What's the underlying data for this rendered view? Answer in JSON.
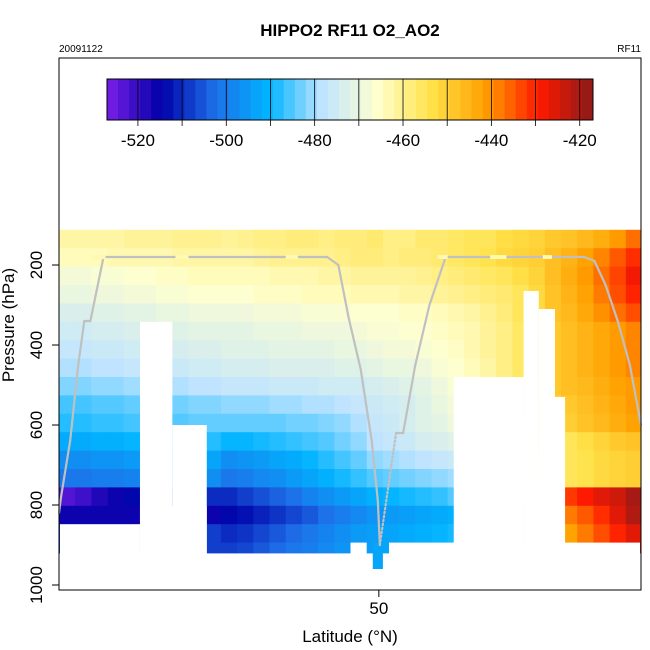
{
  "chart_data": {
    "type": "heatmap",
    "title": "HIPPO2 RF11 O2_AO2",
    "date_label": "20091122",
    "flight_label": "RF11",
    "xlabel": "Latitude (°N)",
    "ylabel": "Pressure (hPa)",
    "xlim": [
      18.4,
      75.9
    ],
    "ylim": [
      1000,
      0
    ],
    "x_ticks": [
      50
    ],
    "y_ticks": [
      200,
      400,
      600,
      800,
      1000
    ],
    "colorbar": {
      "range": [
        -527,
        -417
      ],
      "ticks": [
        -520,
        -500,
        -480,
        -460,
        -440,
        -420
      ],
      "colors": [
        "#7a1fe8",
        "#0000a8",
        "#1e6fe8",
        "#00b4ff",
        "#bfe4ff",
        "#ffffd0",
        "#ffe24a",
        "#ffa000",
        "#ff1a00",
        "#8b1a1a"
      ]
    },
    "grid_x_edges": [
      18.4,
      20.0,
      21.6,
      23.2,
      24.8,
      26.4,
      28.0,
      29.6,
      31.2,
      32.8,
      34.4,
      36.0,
      37.6,
      39.2,
      40.8,
      42.4,
      44.0,
      45.6,
      47.2,
      48.8,
      50.4,
      52.0,
      53.6,
      55.2,
      56.8,
      58.4,
      60.0,
      61.6,
      63.2,
      64.8,
      66.4,
      68.0,
      69.6,
      71.2,
      72.8,
      74.4,
      76.0
    ],
    "grid_y_edges": [
      112,
      158,
      204,
      250,
      296,
      342,
      388,
      434,
      480,
      526,
      572,
      618,
      664,
      710,
      756,
      802,
      848,
      894,
      920
    ],
    "cells": [
      [
        -462,
        -462,
        -462,
        -462,
        -461,
        -461,
        -461,
        -460,
        -460,
        -460,
        -461,
        -460,
        -459,
        -459,
        -458,
        -458,
        -459,
        -458,
        -458,
        -457,
        -459,
        -459,
        -457,
        -457,
        -456,
        -455,
        -455,
        -453,
        -452,
        -451,
        -449,
        -448,
        -446,
        -444,
        -441,
        -437
      ],
      [
        -464,
        -464,
        -464,
        -463,
        -463,
        -463,
        -463,
        -462,
        -462,
        -462,
        -462,
        -462,
        -461,
        -460,
        -460,
        -460,
        -460,
        -459,
        -458,
        -458,
        -459,
        -458,
        -458,
        -457,
        -456,
        -455,
        -454,
        -452,
        -451,
        -450,
        -447,
        -445,
        -442,
        -439,
        -435,
        -431
      ],
      [
        -468,
        -468,
        -467,
        -467,
        -466,
        -466,
        -465,
        -465,
        -464,
        -464,
        -464,
        -464,
        -464,
        -463,
        -463,
        -463,
        -462,
        -462,
        -461,
        -461,
        -461,
        -461,
        -460,
        -459,
        -458,
        -457,
        -456,
        -455,
        -453,
        -451,
        -447,
        -444,
        -441,
        -437,
        -433,
        -428
      ],
      [
        -470,
        -470,
        -469,
        -469,
        -468,
        -468,
        -467,
        -467,
        -466,
        -466,
        -466,
        -466,
        -465,
        -465,
        -465,
        -464,
        -464,
        -464,
        -463,
        -463,
        -463,
        -462,
        -462,
        -461,
        -460,
        -459,
        -458,
        -457,
        -455,
        -452,
        -448,
        -445,
        -442,
        -438,
        -434,
        -430
      ],
      [
        -473,
        -473,
        -472,
        -472,
        -471,
        -471,
        -470,
        -470,
        -469,
        -469,
        -469,
        -469,
        -468,
        -468,
        -468,
        -467,
        -467,
        -467,
        -466,
        -466,
        -466,
        -465,
        -465,
        -464,
        -463,
        -462,
        -460,
        -458,
        -455,
        -452,
        -448,
        -446,
        -443,
        -440,
        -437,
        -434
      ],
      [
        -475,
        -475,
        -474,
        -474,
        -473,
        -473,
        -472,
        -472,
        -471,
        -471,
        -471,
        -471,
        -470,
        -470,
        -470,
        -469,
        -469,
        -469,
        -468,
        -467,
        -467,
        -466,
        -466,
        -465,
        -464,
        -463,
        -461,
        -459,
        -456,
        -453,
        -449,
        -447,
        -445,
        -443,
        -441,
        -439
      ],
      [
        -477,
        -477,
        -476,
        -476,
        -475,
        -475,
        -474,
        -474,
        -473,
        -473,
        -472,
        -472,
        -472,
        -471,
        -471,
        -471,
        -471,
        -470,
        -470,
        -469,
        -468,
        -468,
        -467,
        -466,
        -465,
        -463,
        -461,
        -459,
        -456,
        -452,
        -449,
        -447,
        -445,
        -443,
        -441,
        -439
      ],
      [
        -479,
        -479,
        -478,
        -478,
        -477,
        -477,
        -476,
        -476,
        -475,
        -475,
        -474,
        -474,
        -474,
        -473,
        -473,
        -473,
        -473,
        -472,
        -472,
        -471,
        -470,
        -470,
        -469,
        -467,
        -466,
        -464,
        -462,
        -459,
        -456,
        -452,
        -449,
        -447,
        -445,
        -443,
        -441,
        -439
      ],
      [
        -482,
        -482,
        -481,
        -481,
        -480,
        -480,
        -479,
        -479,
        -478,
        -478,
        -477,
        -477,
        -477,
        -476,
        -476,
        -476,
        -475,
        -475,
        -475,
        -474,
        -473,
        -472,
        -471,
        -469,
        -467,
        -465,
        -463,
        -460,
        -457,
        -453,
        -449,
        -447,
        -446,
        -444,
        -442,
        -441
      ],
      [
        -486,
        -486,
        -485,
        -485,
        -484,
        -484,
        -483,
        -483,
        -482,
        -482,
        -481,
        -481,
        -481,
        -480,
        -480,
        -479,
        -479,
        -478,
        -477,
        -476,
        -475,
        -474,
        -472,
        -470,
        -468,
        -466,
        -464,
        -461,
        -458,
        -455,
        -451,
        -449,
        -447,
        -445,
        -443,
        -441
      ],
      [
        -488,
        -488,
        -487,
        -487,
        -486,
        -486,
        -485,
        -485,
        -484,
        -484,
        -484,
        -484,
        -484,
        -484,
        -483,
        -483,
        -482,
        -481,
        -479,
        -477,
        -476,
        -474,
        -472,
        -471,
        -469,
        -468,
        -466,
        -463,
        -460,
        -457,
        -454,
        -450,
        -448,
        -446,
        -444,
        -442
      ],
      [
        -492,
        -492,
        -491,
        -491,
        -490,
        -490,
        -489,
        -489,
        -488,
        -488,
        -490,
        -490,
        -489,
        -488,
        -487,
        -486,
        -485,
        -483,
        -481,
        -478,
        -477,
        -476,
        -474,
        -473,
        -472,
        -470,
        -468,
        -465,
        -462,
        -459,
        -456,
        -455,
        -453,
        -451,
        -449,
        -448
      ],
      [
        -497,
        -497,
        -496,
        -496,
        -495,
        -495,
        -494,
        -494,
        -493,
        -493,
        -497,
        -496,
        -495,
        -493,
        -492,
        -490,
        -488,
        -486,
        -484,
        -481,
        -480,
        -479,
        -478,
        -477,
        -476,
        -474,
        -472,
        -469,
        -465,
        -460,
        -456,
        -455,
        -454,
        -452,
        -451,
        -450
      ],
      [
        -501,
        -501,
        -500,
        -500,
        -499,
        -499,
        -498,
        -498,
        -497,
        -497,
        -501,
        -500,
        -498,
        -497,
        -495,
        -493,
        -491,
        -489,
        -487,
        -485,
        -484,
        -483,
        -482,
        -481,
        -480,
        -478,
        -475,
        -471,
        -466,
        -461,
        -456,
        -455,
        -454,
        -452,
        -451,
        -450
      ],
      [
        -523,
        -521,
        -518,
        -516,
        -514,
        -513,
        -511,
        -511,
        -510,
        -510,
        -510,
        -508,
        -506,
        -504,
        -502,
        -499,
        -497,
        -495,
        -493,
        -491,
        -490,
        -489,
        -488,
        -487,
        -485,
        -483,
        -480,
        -476,
        -470,
        -463,
        -435,
        -432,
        -429,
        -426,
        -424,
        -420
      ],
      [
        -516,
        -516,
        -516,
        -516,
        -516,
        -516,
        -516,
        -516,
        -516,
        -516,
        -514,
        -513,
        -511,
        -509,
        -507,
        -505,
        -502,
        -500,
        -498,
        -496,
        -495,
        -494,
        -493,
        -492,
        -491,
        -489,
        -486,
        -482,
        -476,
        -469,
        -442,
        -438,
        -435,
        -431,
        -426,
        -421
      ],
      [
        -508,
        -508,
        -508,
        -508,
        -508,
        -508,
        -508,
        -508,
        -508,
        -508,
        -510,
        -509,
        -507,
        -505,
        -503,
        -501,
        -499,
        -497,
        -495,
        -494,
        -493,
        -492,
        -491,
        -490,
        -489,
        -488,
        -485,
        -481,
        -476,
        -470,
        -446,
        -442,
        -438,
        -434,
        -430,
        -426
      ],
      [
        -508,
        -508,
        -508,
        -508,
        -508,
        -508,
        -508,
        -508,
        -508,
        -508,
        -508,
        -507,
        -505,
        -503,
        -501,
        -500,
        -498,
        -496,
        -495,
        -494,
        -493,
        -492,
        -491,
        -490,
        -489,
        -488,
        -485,
        -481,
        -476,
        -470,
        -446,
        -442,
        -438,
        -434,
        -430,
        -426
      ]
    ],
    "masked_regions": [
      {
        "lat": [
          26.4,
          29.6
        ],
        "p": [
          342,
          1000
        ]
      },
      {
        "lat": [
          29.6,
          33.0
        ],
        "p": [
          600,
          1000
        ]
      },
      {
        "lat": [
          18.4,
          26.4
        ],
        "p": [
          848,
          1000
        ]
      },
      {
        "lat": [
          26.4,
          33.0
        ],
        "p": [
          802,
          1000
        ]
      },
      {
        "lat": [
          47.2,
          48.8
        ],
        "p": [
          894,
          1000
        ]
      },
      {
        "lat": [
          51.0,
          75.9
        ],
        "p": [
          894,
          1000
        ]
      },
      {
        "lat": [
          57.4,
          64.3
        ],
        "p": [
          480,
          1000
        ]
      },
      {
        "lat": [
          58.4,
          61.6
        ],
        "p": [
          600,
          1000
        ]
      },
      {
        "lat": [
          64.3,
          65.8
        ],
        "p": [
          265,
          1000
        ]
      },
      {
        "lat": [
          65.8,
          67.4
        ],
        "p": [
          310,
          1000
        ]
      },
      {
        "lat": [
          66.9,
          68.4
        ],
        "p": [
          530,
          1000
        ]
      }
    ],
    "extra_cells": [
      {
        "lat": [
          49.4,
          50.4
        ],
        "p": [
          894,
          960
        ],
        "value": -493
      }
    ],
    "flight_track": [
      [
        18.4,
        820
      ],
      [
        18.6,
        780
      ],
      [
        19.5,
        640
      ],
      [
        20.3,
        450
      ],
      [
        20.9,
        340
      ],
      [
        21.5,
        340
      ],
      [
        22.8,
        180
      ],
      [
        30.3,
        180
      ],
      [
        32.1,
        180
      ],
      [
        44.9,
        180
      ],
      [
        46.0,
        200
      ],
      [
        47.0,
        330
      ],
      [
        48.2,
        460
      ],
      [
        49.3,
        640
      ],
      [
        49.9,
        790
      ],
      [
        50.1,
        900
      ],
      [
        51.7,
        620
      ],
      [
        52.4,
        620
      ],
      [
        53.6,
        450
      ],
      [
        55.0,
        300
      ],
      [
        56.6,
        180
      ],
      [
        58.1,
        180
      ],
      [
        65.9,
        180
      ],
      [
        70.3,
        180
      ],
      [
        71.3,
        190
      ],
      [
        72.4,
        250
      ],
      [
        73.6,
        340
      ],
      [
        74.8,
        450
      ],
      [
        75.9,
        600
      ]
    ],
    "track_breaks": [
      [
        21.7,
        23.0
      ],
      [
        29.9,
        31.2
      ],
      [
        40.8,
        42.0
      ],
      [
        55.8,
        56.8
      ],
      [
        61.0,
        62.6
      ],
      [
        66.2,
        67.1
      ]
    ]
  }
}
